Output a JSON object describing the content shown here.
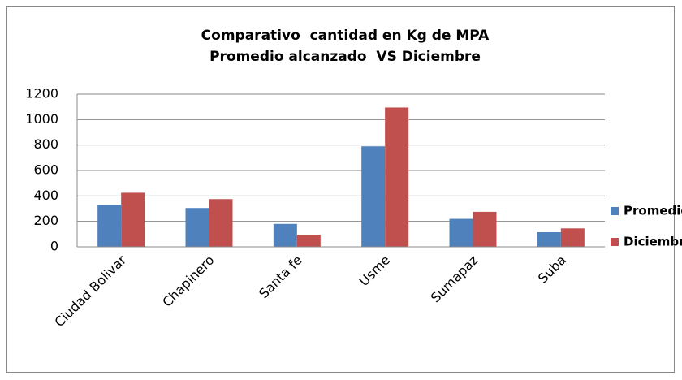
{
  "chart_data": {
    "type": "bar",
    "title": [
      "Comparativo  cantidad en Kg de MPA",
      "Promedio alcanzado  VS Diciembre"
    ],
    "categories": [
      "Ciudad Bolivar",
      "Chapinero",
      "Santa fe",
      "Usme",
      "Sumapaz",
      "Suba"
    ],
    "series": [
      {
        "name": "Promedio",
        "color": "#4f81bd",
        "values": [
          330,
          305,
          180,
          790,
          220,
          115
        ]
      },
      {
        "name": "Diciembre",
        "color": "#c0504d",
        "values": [
          425,
          375,
          95,
          1095,
          275,
          145
        ]
      }
    ],
    "ylim": [
      0,
      1200
    ],
    "yticks": [
      0,
      200,
      400,
      600,
      800,
      1000,
      1200
    ],
    "grid": true,
    "legend": "right"
  }
}
